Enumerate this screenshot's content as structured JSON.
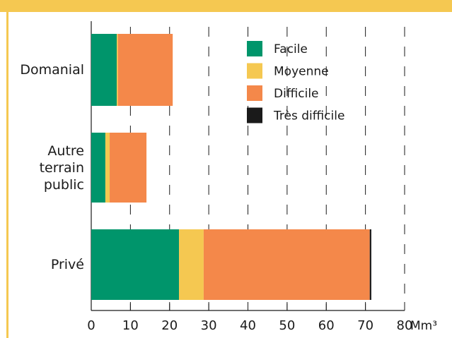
{
  "chart_data": {
    "type": "stacked-barh",
    "categories": [
      "Domanial",
      "Autre\nterrain\npublic",
      "Privé"
    ],
    "series": [
      {
        "name": "Facile",
        "color": "#00956b",
        "values": [
          6.5,
          3.6,
          22.4
        ]
      },
      {
        "name": "Moyenne",
        "color": "#f5c851",
        "values": [
          0.3,
          1.1,
          6.3
        ]
      },
      {
        "name": "Difficile",
        "color": "#f4884a",
        "values": [
          14,
          9.4,
          42.4
        ]
      },
      {
        "name": "Très difficile",
        "color": "#1a1a1a",
        "values": [
          0,
          0,
          0.4
        ]
      }
    ],
    "xlim": [
      0,
      80
    ],
    "xticks": [
      0,
      10,
      20,
      30,
      40,
      50,
      60,
      70,
      80
    ],
    "x_unit": "Mm³",
    "grid": true
  }
}
